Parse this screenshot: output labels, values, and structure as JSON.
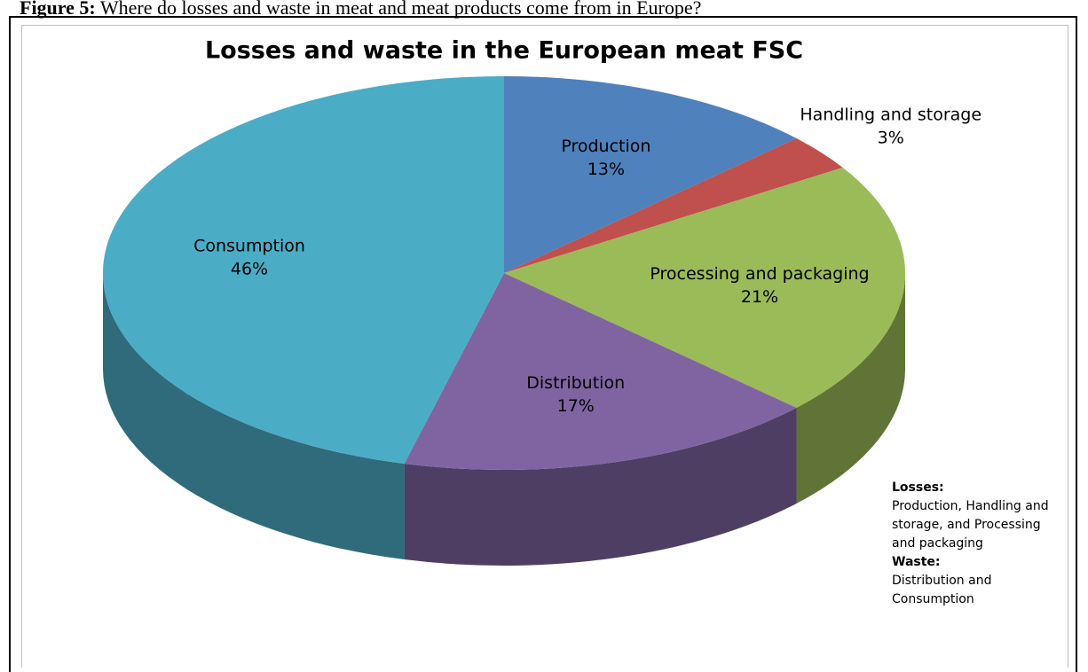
{
  "caption_label": "Figure 5:",
  "caption": "Where do losses and waste in meat and meat products come from in Europe?",
  "chart_data": {
    "type": "pie",
    "title": "Losses and waste in the European meat FSC",
    "categories": [
      "Production",
      "Handling and storage",
      "Processing and packaging",
      "Distribution",
      "Consumption"
    ],
    "values": [
      13,
      3,
      21,
      17,
      46
    ],
    "value_labels": [
      "13%",
      "3%",
      "21%",
      "17%",
      "46%"
    ],
    "colors": [
      "#4f81bd",
      "#c0504d",
      "#9bbb59",
      "#8064a2",
      "#4bacc6"
    ],
    "annotations": [
      "Losses:",
      "Production, Handling and storage, and Processing and packaging",
      "Waste:",
      "Distribution and Consumption"
    ]
  }
}
